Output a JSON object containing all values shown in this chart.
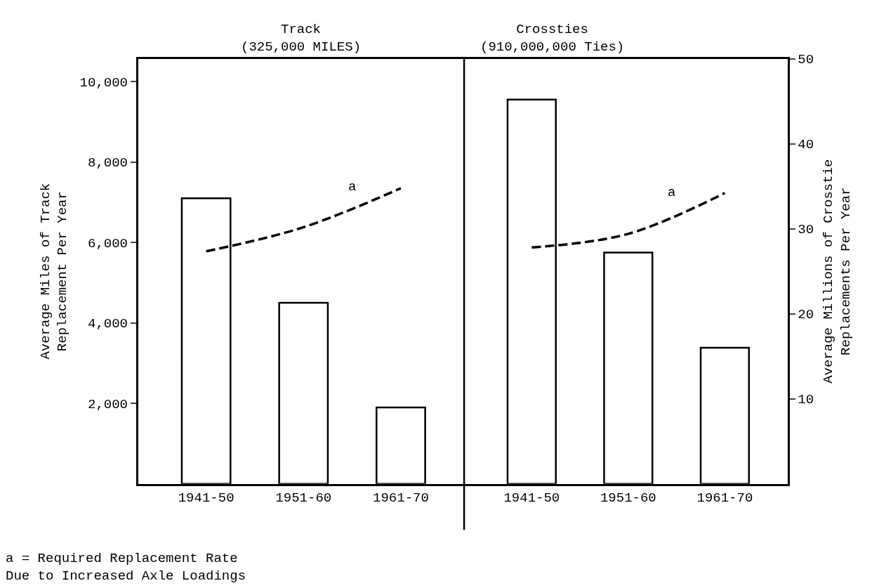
{
  "chart_data": [
    {
      "type": "bar",
      "title": "Track\n(325,000 MILES)",
      "ylabel": "Average Miles of Track\nReplacement Per Year",
      "categories": [
        "1941-50",
        "1951-60",
        "1961-70"
      ],
      "series": [
        {
          "color": "#ffffff",
          "values": [
            7100,
            4500,
            1900
          ]
        },
        {
          "type": "line",
          "name": "a",
          "color": "#000000",
          "line_style": "dashed",
          "values": [
            5780,
            6380,
            7350
          ]
        }
      ],
      "ylim": [
        0,
        10570
      ],
      "yticks": [
        {
          "value": 2000,
          "label": "2,000"
        },
        {
          "value": 4000,
          "label": "4,000"
        },
        {
          "value": 6000,
          "label": "6,000"
        },
        {
          "value": 8000,
          "label": "8,000"
        },
        {
          "value": 10000,
          "label": "10,000"
        }
      ],
      "legend": false,
      "annotations": [
        "a = Required Replacement Rate\nDue to Increased Axle Loadings"
      ]
    },
    {
      "type": "bar",
      "title": "Crossties\n(910,000,000 Ties)",
      "y2label": "Average Millions of Crosstie\nReplacements Per Year",
      "categories": [
        "1941-50",
        "1951-60",
        "1961-70"
      ],
      "series": [
        {
          "color": "#ffffff",
          "axis": "y2",
          "values": [
            45.2,
            27.2,
            16.0
          ]
        },
        {
          "type": "line",
          "name": "a",
          "color": "#000000",
          "axis": "y2",
          "line_style": "dashed",
          "values": [
            27.8,
            29.4,
            34.2
          ]
        }
      ],
      "y2lim": [
        0,
        50
      ],
      "y2ticks": [
        10,
        20,
        30,
        40,
        50
      ],
      "legend": false
    }
  ]
}
